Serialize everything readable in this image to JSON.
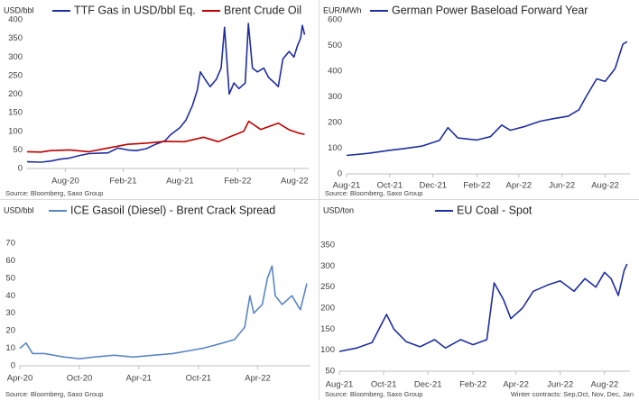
{
  "chart_data": [
    {
      "type": "line",
      "ylabel": "USD/bbl",
      "ylim": [
        0,
        400
      ],
      "yticks": [
        0,
        50,
        100,
        150,
        200,
        250,
        300,
        350,
        400
      ],
      "x_range": [
        "2020-04-01",
        "2022-09-15"
      ],
      "x_ticks": [
        {
          "date": "2020-08-01",
          "label": "Aug-20"
        },
        {
          "date": "2021-02-01",
          "label": "Feb-21"
        },
        {
          "date": "2021-08-01",
          "label": "Aug-21"
        },
        {
          "date": "2022-02-01",
          "label": "Feb-22"
        },
        {
          "date": "2022-08-01",
          "label": "Aug-22"
        }
      ],
      "legend_position": "top",
      "grid": false,
      "source": "Source: Bloomberg, Saxo Group",
      "series": [
        {
          "name": "TTF Gas in USD/bbl Eq.",
          "color": "#1f2f9e",
          "points": [
            [
              "2020-04-01",
              18
            ],
            [
              "2020-05-15",
              17
            ],
            [
              "2020-06-15",
              20
            ],
            [
              "2020-07-15",
              25
            ],
            [
              "2020-08-15",
              28
            ],
            [
              "2020-09-15",
              35
            ],
            [
              "2020-10-15",
              40
            ],
            [
              "2020-11-15",
              41
            ],
            [
              "2020-12-15",
              42
            ],
            [
              "2021-01-15",
              55
            ],
            [
              "2021-02-15",
              50
            ],
            [
              "2021-03-15",
              48
            ],
            [
              "2021-04-15",
              53
            ],
            [
              "2021-05-15",
              65
            ],
            [
              "2021-06-15",
              75
            ],
            [
              "2021-07-01",
              90
            ],
            [
              "2021-08-01",
              110
            ],
            [
              "2021-08-20",
              130
            ],
            [
              "2021-09-10",
              170
            ],
            [
              "2021-09-25",
              210
            ],
            [
              "2021-10-05",
              260
            ],
            [
              "2021-10-20",
              240
            ],
            [
              "2021-11-05",
              220
            ],
            [
              "2021-11-25",
              240
            ],
            [
              "2021-12-10",
              270
            ],
            [
              "2021-12-21",
              380
            ],
            [
              "2022-01-05",
              200
            ],
            [
              "2022-01-20",
              230
            ],
            [
              "2022-02-05",
              215
            ],
            [
              "2022-02-25",
              230
            ],
            [
              "2022-03-07",
              390
            ],
            [
              "2022-03-20",
              270
            ],
            [
              "2022-04-05",
              260
            ],
            [
              "2022-04-25",
              270
            ],
            [
              "2022-05-10",
              245
            ],
            [
              "2022-05-30",
              230
            ],
            [
              "2022-06-10",
              220
            ],
            [
              "2022-06-25",
              295
            ],
            [
              "2022-07-15",
              315
            ],
            [
              "2022-07-30",
              300
            ],
            [
              "2022-08-10",
              330
            ],
            [
              "2022-08-20",
              350
            ],
            [
              "2022-08-26",
              385
            ],
            [
              "2022-09-02",
              360
            ]
          ]
        },
        {
          "name": "Brent Crude Oil",
          "color": "#c00000",
          "points": [
            [
              "2020-04-01",
              45
            ],
            [
              "2020-05-15",
              44
            ],
            [
              "2020-06-15",
              48
            ],
            [
              "2020-08-15",
              50
            ],
            [
              "2020-10-15",
              45
            ],
            [
              "2020-12-15",
              55
            ],
            [
              "2021-02-15",
              65
            ],
            [
              "2021-04-15",
              68
            ],
            [
              "2021-06-15",
              73
            ],
            [
              "2021-08-15",
              72
            ],
            [
              "2021-10-15",
              84
            ],
            [
              "2021-12-01",
              72
            ],
            [
              "2022-01-15",
              88
            ],
            [
              "2022-02-20",
              100
            ],
            [
              "2022-03-08",
              127
            ],
            [
              "2022-04-15",
              105
            ],
            [
              "2022-06-10",
              122
            ],
            [
              "2022-07-15",
              104
            ],
            [
              "2022-08-15",
              95
            ],
            [
              "2022-09-02",
              92
            ]
          ]
        }
      ]
    },
    {
      "type": "line",
      "ylabel": "EUR/MWh",
      "ylim": [
        0,
        600
      ],
      "yticks": [
        0,
        100,
        200,
        300,
        400,
        500,
        600
      ],
      "x_range": [
        "2021-08-01",
        "2022-09-05"
      ],
      "x_ticks": [
        {
          "date": "2021-08-01",
          "label": "Aug-21"
        },
        {
          "date": "2021-10-01",
          "label": "Oct-21"
        },
        {
          "date": "2021-12-01",
          "label": "Dec-21"
        },
        {
          "date": "2022-02-01",
          "label": "Feb-22"
        },
        {
          "date": "2022-04-01",
          "label": "Apr-22"
        },
        {
          "date": "2022-06-01",
          "label": "Jun-22"
        },
        {
          "date": "2022-08-01",
          "label": "Aug-22"
        }
      ],
      "legend_position": "top",
      "grid": false,
      "source": "Source: Bloomberg, Saxo Group",
      "series": [
        {
          "name": "German Power Baseload Forward Year",
          "color": "#1f2f9e",
          "points": [
            [
              "2021-08-01",
              72
            ],
            [
              "2021-09-01",
              80
            ],
            [
              "2021-10-01",
              92
            ],
            [
              "2021-10-20",
              98
            ],
            [
              "2021-11-15",
              108
            ],
            [
              "2021-12-10",
              130
            ],
            [
              "2021-12-22",
              180
            ],
            [
              "2022-01-05",
              140
            ],
            [
              "2022-02-01",
              132
            ],
            [
              "2022-02-20",
              145
            ],
            [
              "2022-03-08",
              190
            ],
            [
              "2022-03-20",
              170
            ],
            [
              "2022-04-10",
              185
            ],
            [
              "2022-05-01",
              205
            ],
            [
              "2022-05-20",
              215
            ],
            [
              "2022-06-10",
              225
            ],
            [
              "2022-06-25",
              250
            ],
            [
              "2022-07-05",
              300
            ],
            [
              "2022-07-20",
              370
            ],
            [
              "2022-08-01",
              360
            ],
            [
              "2022-08-15",
              410
            ],
            [
              "2022-08-26",
              505
            ],
            [
              "2022-09-01",
              515
            ]
          ]
        }
      ]
    },
    {
      "type": "line",
      "ylabel": "USD/bbl",
      "ylim": [
        0,
        70
      ],
      "yticks": [
        0,
        10,
        20,
        30,
        40,
        50,
        60,
        70
      ],
      "x_range": [
        "2020-04-01",
        "2022-09-10"
      ],
      "x_ticks": [
        {
          "date": "2020-04-01",
          "label": "Apr-20"
        },
        {
          "date": "2020-10-01",
          "label": "Oct-20"
        },
        {
          "date": "2021-04-01",
          "label": "Apr-21"
        },
        {
          "date": "2021-10-01",
          "label": "Oct-21"
        },
        {
          "date": "2022-04-01",
          "label": "Apr-22"
        }
      ],
      "legend_position": "top",
      "grid": false,
      "source": "Source: Bloomberg, Saxo Group",
      "series": [
        {
          "name": "ICE Gasoil (Diesel) - Brent Crack Spread",
          "color": "#5b86c5",
          "points": [
            [
              "2020-04-01",
              10
            ],
            [
              "2020-04-20",
              13
            ],
            [
              "2020-05-10",
              7
            ],
            [
              "2020-06-15",
              7
            ],
            [
              "2020-08-15",
              5
            ],
            [
              "2020-10-01",
              4
            ],
            [
              "2020-11-15",
              5
            ],
            [
              "2021-01-15",
              6
            ],
            [
              "2021-03-15",
              5
            ],
            [
              "2021-05-15",
              6
            ],
            [
              "2021-07-15",
              7
            ],
            [
              "2021-09-15",
              9
            ],
            [
              "2021-10-15",
              10
            ],
            [
              "2021-12-15",
              13
            ],
            [
              "2022-01-20",
              15
            ],
            [
              "2022-02-20",
              22
            ],
            [
              "2022-03-08",
              40
            ],
            [
              "2022-03-20",
              30
            ],
            [
              "2022-04-15",
              35
            ],
            [
              "2022-05-01",
              50
            ],
            [
              "2022-05-15",
              57
            ],
            [
              "2022-05-25",
              40
            ],
            [
              "2022-06-15",
              35
            ],
            [
              "2022-07-15",
              40
            ],
            [
              "2022-08-10",
              32
            ],
            [
              "2022-08-30",
              47
            ]
          ]
        }
      ]
    },
    {
      "type": "line",
      "ylabel": "USD/ton",
      "ylim": [
        50,
        350
      ],
      "yticks": [
        50,
        100,
        150,
        200,
        250,
        300,
        350
      ],
      "x_range": [
        "2021-08-01",
        "2022-09-05"
      ],
      "x_ticks": [
        {
          "date": "2021-08-01",
          "label": "Aug-21"
        },
        {
          "date": "2021-10-01",
          "label": "Oct-21"
        },
        {
          "date": "2021-12-01",
          "label": "Dec-21"
        },
        {
          "date": "2022-02-01",
          "label": "Feb-22"
        },
        {
          "date": "2022-04-01",
          "label": "Apr-22"
        },
        {
          "date": "2022-06-01",
          "label": "Jun-22"
        },
        {
          "date": "2022-08-01",
          "label": "Aug-22"
        }
      ],
      "legend_position": "top",
      "grid": false,
      "source": "Source: Bloomberg, Saxo Group",
      "note": "Winter contracts: Sep,Oct, Nov, Dec, Jan",
      "series": [
        {
          "name": "EU Coal - Spot",
          "color": "#1f2f9e",
          "points": [
            [
              "2021-08-01",
              97
            ],
            [
              "2021-08-25",
              105
            ],
            [
              "2021-09-15",
              118
            ],
            [
              "2021-10-05",
              185
            ],
            [
              "2021-10-15",
              150
            ],
            [
              "2021-11-01",
              120
            ],
            [
              "2021-11-20",
              108
            ],
            [
              "2021-12-10",
              125
            ],
            [
              "2021-12-25",
              105
            ],
            [
              "2022-01-15",
              125
            ],
            [
              "2022-02-01",
              113
            ],
            [
              "2022-02-20",
              125
            ],
            [
              "2022-03-02",
              260
            ],
            [
              "2022-03-15",
              220
            ],
            [
              "2022-03-25",
              175
            ],
            [
              "2022-04-10",
              200
            ],
            [
              "2022-04-25",
              240
            ],
            [
              "2022-05-15",
              255
            ],
            [
              "2022-06-01",
              265
            ],
            [
              "2022-06-20",
              240
            ],
            [
              "2022-07-05",
              270
            ],
            [
              "2022-07-20",
              250
            ],
            [
              "2022-08-01",
              285
            ],
            [
              "2022-08-10",
              270
            ],
            [
              "2022-08-20",
              230
            ],
            [
              "2022-08-28",
              290
            ],
            [
              "2022-09-01",
              305
            ]
          ]
        }
      ]
    }
  ]
}
